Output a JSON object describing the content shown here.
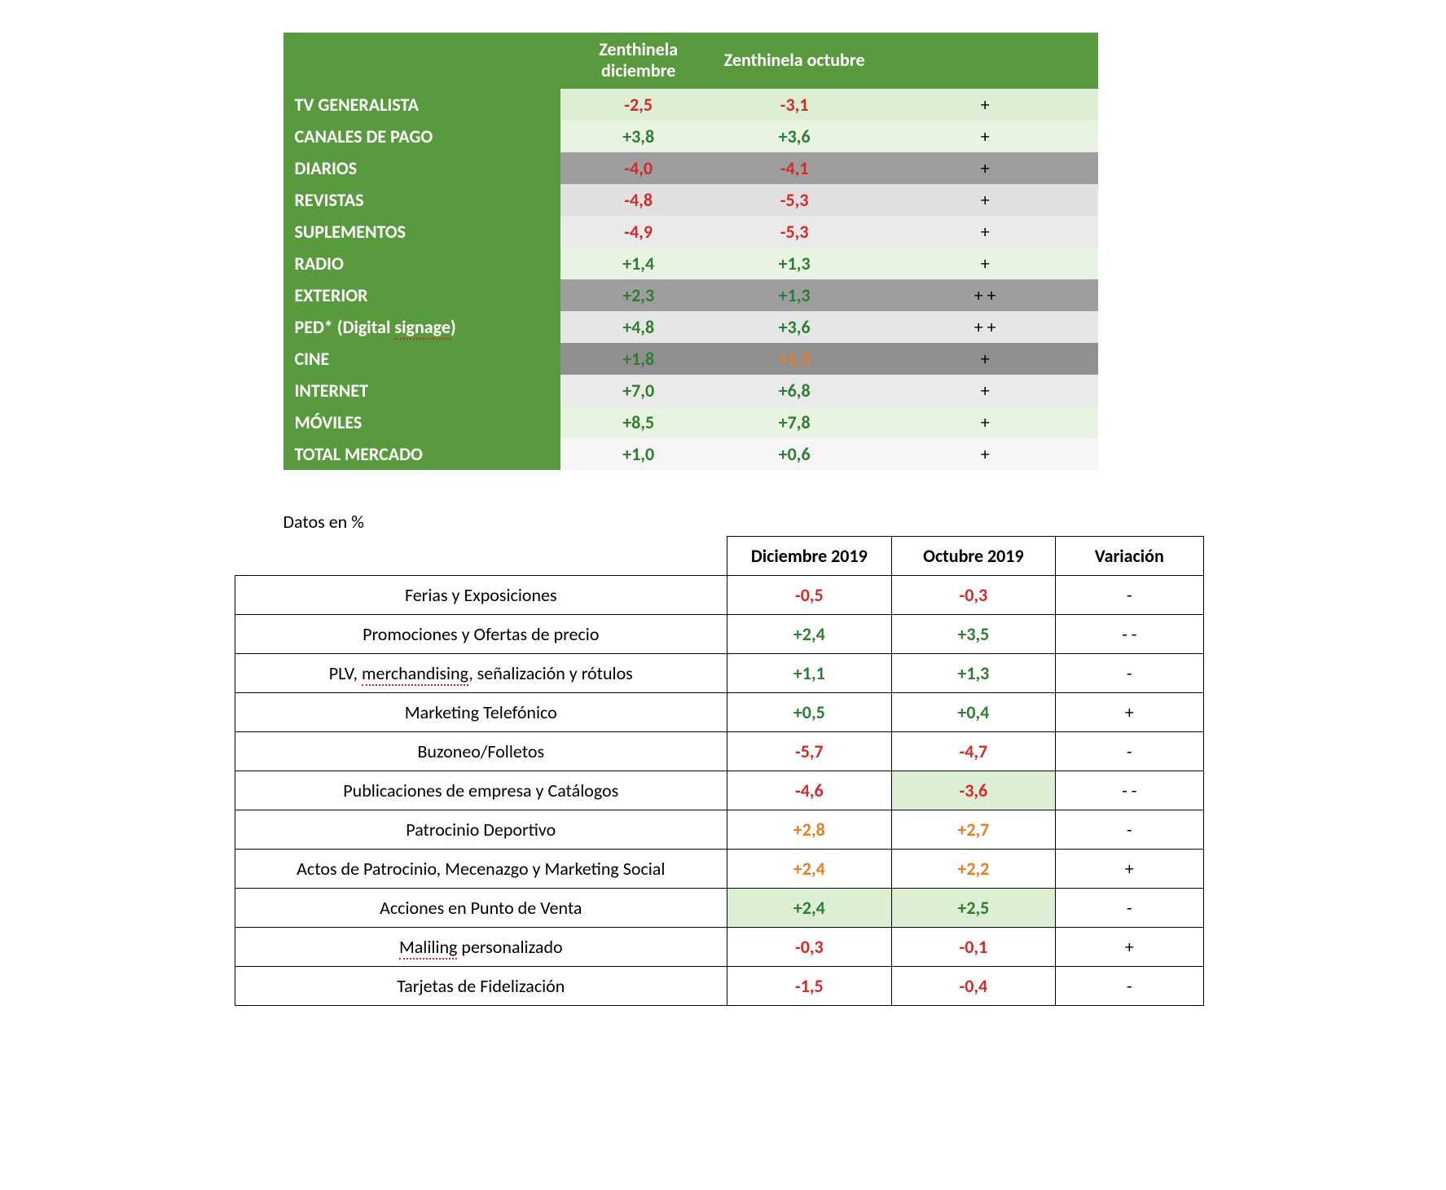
{
  "table1": {
    "headers": {
      "col2": "Zenthinela diciembre",
      "col3": "Zenthinela octubre"
    },
    "row_bg_shades": [
      "#dceed3",
      "#e8f3e2",
      "#9e9e9e",
      "#e0e0e0",
      "#eaeaea",
      "#e8f3e2",
      "#9e9e9e",
      "#e6e6e6",
      "#8f8f8f",
      "#eaeaea",
      "#e8f3e2",
      "#f5f5f5"
    ],
    "rows": [
      {
        "label": "TV GENERALISTA",
        "dec": "-2,5",
        "dec_class": "neg",
        "oct": "-3,1",
        "oct_class": "neg",
        "var": "+"
      },
      {
        "label": "CANALES DE PAGO",
        "dec": "+3,8",
        "dec_class": "pos",
        "oct": "+3,6",
        "oct_class": "pos",
        "var": "+"
      },
      {
        "label": "DIARIOS",
        "dec": "-4,0",
        "dec_class": "neg",
        "oct": "-4,1",
        "oct_class": "neg",
        "var": "+"
      },
      {
        "label": "REVISTAS",
        "dec": "-4,8",
        "dec_class": "neg",
        "oct": "-5,3",
        "oct_class": "neg",
        "var": "+"
      },
      {
        "label": "SUPLEMENTOS",
        "dec": "-4,9",
        "dec_class": "neg",
        "oct": "-5,3",
        "oct_class": "neg",
        "var": "+"
      },
      {
        "label": "RADIO",
        "dec": "+1,4",
        "dec_class": "pos",
        "oct": "+1,3",
        "oct_class": "pos",
        "var": "+"
      },
      {
        "label": "EXTERIOR",
        "dec": "+2,3",
        "dec_class": "pos",
        "oct": "+1,3",
        "oct_class": "pos",
        "var": "+ +"
      },
      {
        "label": "PED* (Digital signage)",
        "dec": "+4,8",
        "dec_class": "pos",
        "oct": "+3,6",
        "oct_class": "pos",
        "var": "+ +",
        "label_spellcheck": true
      },
      {
        "label": "CINE",
        "dec": "+1,8",
        "dec_class": "pos",
        "oct": "+1,3",
        "oct_class": "orange",
        "var": "+"
      },
      {
        "label": "INTERNET",
        "dec": "+7,0",
        "dec_class": "pos",
        "oct": "+6,8",
        "oct_class": "pos",
        "var": "+"
      },
      {
        "label": "MÓVILES",
        "dec": "+8,5",
        "dec_class": "pos",
        "oct": "+7,8",
        "oct_class": "pos",
        "var": "+"
      },
      {
        "label": "TOTAL MERCADO",
        "dec": "+1,0",
        "dec_class": "pos",
        "oct": "+0,6",
        "oct_class": "pos",
        "var": "+"
      }
    ]
  },
  "table2": {
    "caption": "Datos en %",
    "headers": {
      "col2": "Diciembre 2019",
      "col3": "Octubre 2019",
      "col4": "Variación"
    },
    "rows": [
      {
        "label": "Ferias y Exposiciones",
        "dec": "-0,5",
        "dec_class": "neg",
        "oct": "-0,3",
        "oct_class": "neg",
        "var": "-"
      },
      {
        "label": "Promociones y Ofertas de precio",
        "dec": "+2,4",
        "dec_class": "pos",
        "oct": "+3,5",
        "oct_class": "pos",
        "var": "- -"
      },
      {
        "label": "PLV, merchandising, señalización y rótulos",
        "dec": "+1,1",
        "dec_class": "pos",
        "oct": "+1,3",
        "oct_class": "pos",
        "var": "-",
        "spell_words": [
          "merchandising"
        ]
      },
      {
        "label": "Marketing Telefónico",
        "dec": "+0,5",
        "dec_class": "pos",
        "oct": "+0,4",
        "oct_class": "pos",
        "var": "+"
      },
      {
        "label": "Buzoneo/Folletos",
        "dec": "-5,7",
        "dec_class": "neg",
        "oct": "-4,7",
        "oct_class": "neg",
        "var": "-"
      },
      {
        "label": "Publicaciones de empresa y Catálogos",
        "dec": "-4,6",
        "dec_class": "neg",
        "oct": "-3,6",
        "oct_class": "neg",
        "var": "- -",
        "oct_hl": true
      },
      {
        "label": "Patrocinio Deportivo",
        "dec": "+2,8",
        "dec_class": "orange",
        "oct": "+2,7",
        "oct_class": "orange",
        "var": "-"
      },
      {
        "label": "Actos de Patrocinio, Mecenazgo y Marketing Social",
        "dec": "+2,4",
        "dec_class": "orange",
        "oct": "+2,2",
        "oct_class": "orange",
        "var": "+"
      },
      {
        "label": "Acciones en Punto de Venta",
        "dec": "+2,4",
        "dec_class": "pos",
        "oct": "+2,5",
        "oct_class": "pos",
        "var": "-",
        "dec_hl": true,
        "oct_hl": true
      },
      {
        "label": "Maliling personalizado",
        "dec": "-0,3",
        "dec_class": "neg",
        "oct": "-0,1",
        "oct_class": "neg",
        "var": "+",
        "spell_words": [
          "Maliling"
        ]
      },
      {
        "label": "Tarjetas de Fidelización",
        "dec": "-1,5",
        "dec_class": "neg",
        "oct": "-0,4",
        "oct_class": "neg",
        "var": "-"
      }
    ]
  }
}
